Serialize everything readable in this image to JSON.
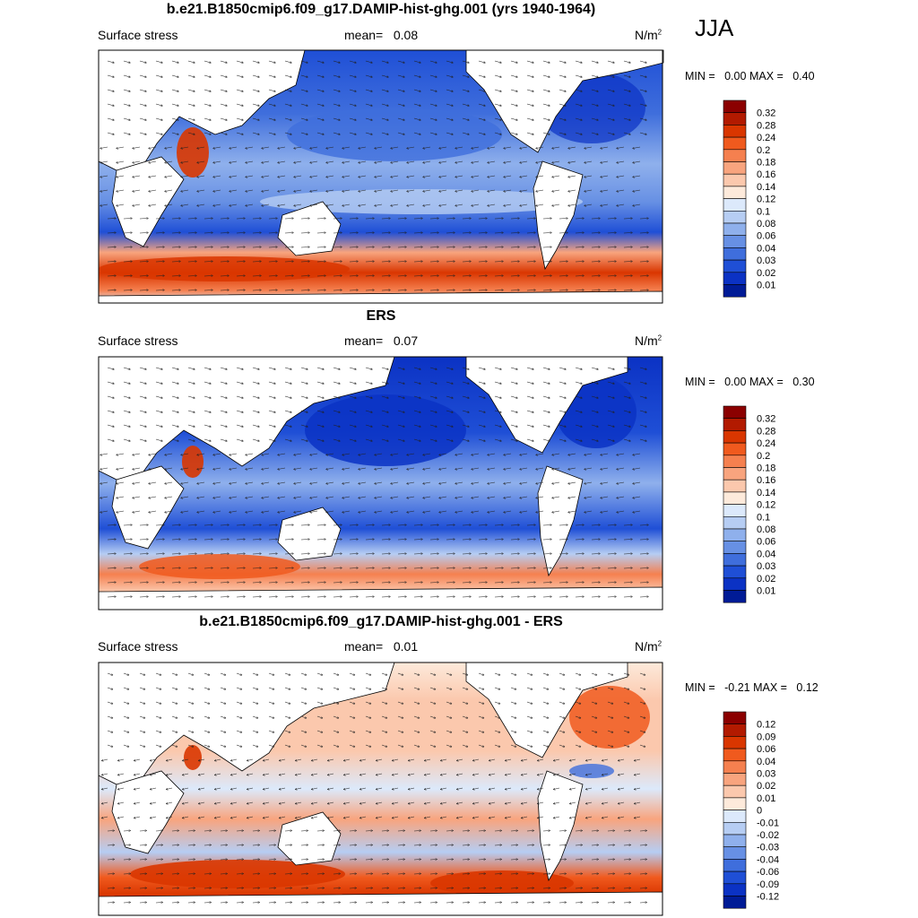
{
  "season_label": "JJA",
  "chart_data": [
    {
      "type": "heatmap",
      "title": "b.e21.B1850cmip6.f09_g17.DAMIP-hist-ghg.001 (yrs 1940-1964)",
      "left_label": "Surface stress",
      "mean_label": "mean=",
      "mean_value": "0.08",
      "units_main": "N/m",
      "units_exp": "2",
      "min_label": "MIN =",
      "min_value": "0.00",
      "max_label": "MAX =",
      "max_value": "0.40",
      "colorbar": {
        "labels": [
          "0.32",
          "0.28",
          "0.24",
          "0.2",
          "0.18",
          "0.16",
          "0.14",
          "0.12",
          "0.1",
          "0.08",
          "0.06",
          "0.04",
          "0.03",
          "0.02",
          "0.01"
        ],
        "colors": [
          "#8b0000",
          "#b21a00",
          "#d93600",
          "#f05a1e",
          "#f5804f",
          "#f8a47e",
          "#fbc8ad",
          "#fdeadb",
          "#dce9fb",
          "#b6cdf3",
          "#8fb0ec",
          "#6790e4",
          "#3f6edc",
          "#1f4fd6",
          "#0b32c4",
          "#001b96"
        ]
      }
    },
    {
      "type": "heatmap",
      "title": "ERS",
      "left_label": "Surface stress",
      "mean_label": "mean=",
      "mean_value": "0.07",
      "units_main": "N/m",
      "units_exp": "2",
      "min_label": "MIN =",
      "min_value": "0.00",
      "max_label": "MAX =",
      "max_value": "0.30",
      "colorbar": {
        "labels": [
          "0.32",
          "0.28",
          "0.24",
          "0.2",
          "0.18",
          "0.16",
          "0.14",
          "0.12",
          "0.1",
          "0.08",
          "0.06",
          "0.04",
          "0.03",
          "0.02",
          "0.01"
        ],
        "colors": [
          "#8b0000",
          "#b21a00",
          "#d93600",
          "#f05a1e",
          "#f5804f",
          "#f8a47e",
          "#fbc8ad",
          "#fdeadb",
          "#dce9fb",
          "#b6cdf3",
          "#8fb0ec",
          "#6790e4",
          "#3f6edc",
          "#1f4fd6",
          "#0b32c4",
          "#001b96"
        ]
      }
    },
    {
      "type": "heatmap",
      "title": "b.e21.B1850cmip6.f09_g17.DAMIP-hist-ghg.001 - ERS",
      "left_label": "Surface stress",
      "mean_label": "mean=",
      "mean_value": "0.01",
      "units_main": "N/m",
      "units_exp": "2",
      "min_label": "MIN =",
      "min_value": "-0.21",
      "max_label": "MAX =",
      "max_value": "0.12",
      "colorbar": {
        "labels": [
          "0.12",
          "0.09",
          "0.06",
          "0.04",
          "0.03",
          "0.02",
          "0.01",
          "0",
          "-0.01",
          "-0.02",
          "-0.03",
          "-0.04",
          "-0.06",
          "-0.09",
          "-0.12"
        ],
        "colors": [
          "#8b0000",
          "#b21a00",
          "#d93600",
          "#f05a1e",
          "#f5804f",
          "#f8a47e",
          "#fbc8ad",
          "#fdeadb",
          "#dce9fb",
          "#b6cdf3",
          "#8fb0ec",
          "#6790e4",
          "#3f6edc",
          "#1f4fd6",
          "#0b32c4",
          "#001b96"
        ]
      }
    }
  ]
}
